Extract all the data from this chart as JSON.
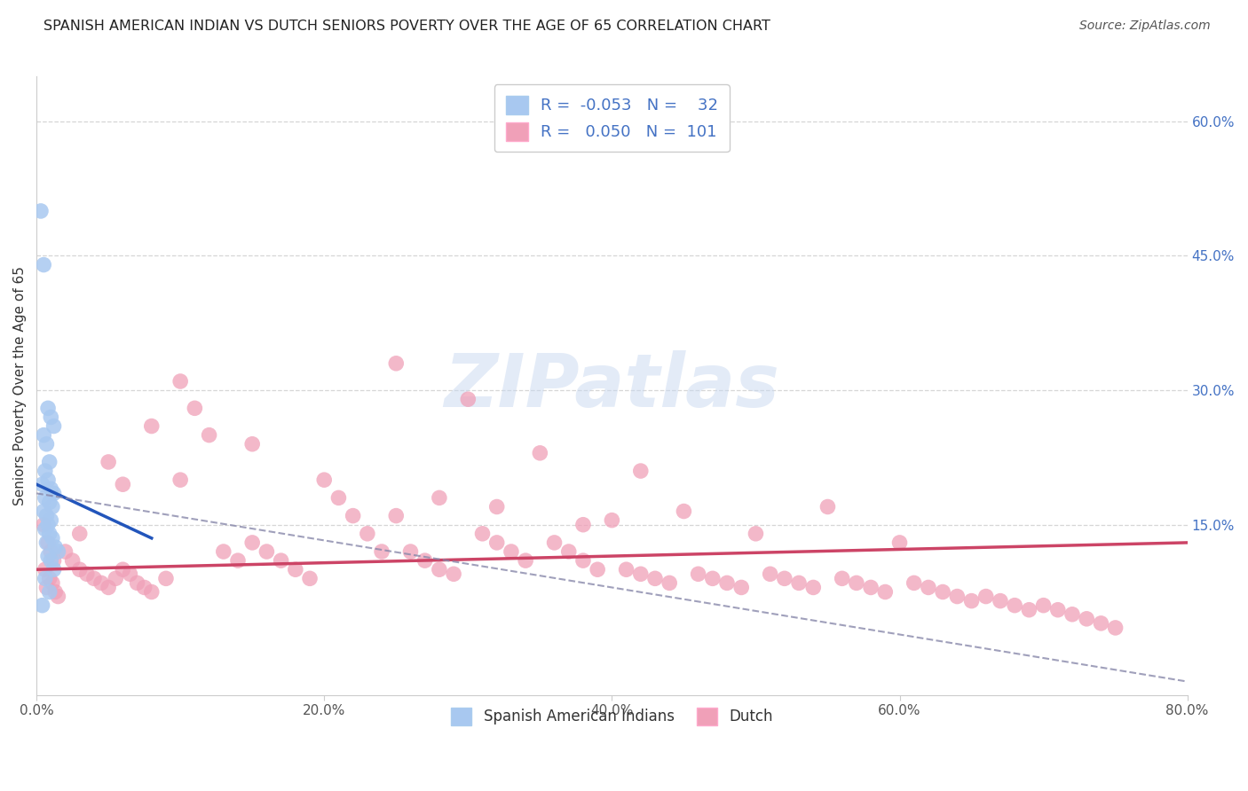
{
  "title": "SPANISH AMERICAN INDIAN VS DUTCH SENIORS POVERTY OVER THE AGE OF 65 CORRELATION CHART",
  "source": "Source: ZipAtlas.com",
  "ylabel": "Seniors Poverty Over the Age of 65",
  "x_min": 0.0,
  "x_max": 0.8,
  "y_min": -0.04,
  "y_max": 0.65,
  "right_yticks": [
    0.15,
    0.3,
    0.45,
    0.6
  ],
  "right_yticklabels": [
    "15.0%",
    "30.0%",
    "45.0%",
    "60.0%"
  ],
  "xticks": [
    0.0,
    0.2,
    0.4,
    0.6,
    0.8
  ],
  "xticklabels": [
    "0.0%",
    "20.0%",
    "40.0%",
    "60.0%",
    "80.0%"
  ],
  "color_blue": "#A8C8F0",
  "color_pink": "#F0A0B8",
  "color_blue_line": "#2255BB",
  "color_pink_line": "#CC4466",
  "color_dashed": "#8888AA",
  "watermark_text": "ZIPatlas",
  "blue_x": [
    0.003,
    0.005,
    0.008,
    0.01,
    0.012,
    0.005,
    0.007,
    0.009,
    0.006,
    0.008,
    0.004,
    0.01,
    0.012,
    0.006,
    0.009,
    0.011,
    0.005,
    0.007,
    0.01,
    0.008,
    0.006,
    0.009,
    0.011,
    0.007,
    0.013,
    0.015,
    0.008,
    0.01,
    0.012,
    0.006,
    0.009,
    0.004
  ],
  "blue_y": [
    0.5,
    0.44,
    0.28,
    0.27,
    0.26,
    0.25,
    0.24,
    0.22,
    0.21,
    0.2,
    0.195,
    0.19,
    0.185,
    0.18,
    0.175,
    0.17,
    0.165,
    0.16,
    0.155,
    0.15,
    0.145,
    0.14,
    0.135,
    0.13,
    0.125,
    0.12,
    0.115,
    0.11,
    0.1,
    0.09,
    0.075,
    0.06
  ],
  "pink_x": [
    0.005,
    0.008,
    0.01,
    0.012,
    0.006,
    0.009,
    0.011,
    0.007,
    0.013,
    0.015,
    0.02,
    0.025,
    0.03,
    0.035,
    0.04,
    0.045,
    0.05,
    0.055,
    0.06,
    0.065,
    0.07,
    0.075,
    0.08,
    0.09,
    0.1,
    0.11,
    0.12,
    0.13,
    0.14,
    0.15,
    0.16,
    0.17,
    0.18,
    0.19,
    0.2,
    0.21,
    0.22,
    0.23,
    0.24,
    0.25,
    0.26,
    0.27,
    0.28,
    0.29,
    0.3,
    0.31,
    0.32,
    0.33,
    0.34,
    0.35,
    0.36,
    0.37,
    0.38,
    0.39,
    0.4,
    0.41,
    0.42,
    0.43,
    0.44,
    0.45,
    0.46,
    0.47,
    0.48,
    0.49,
    0.5,
    0.51,
    0.52,
    0.53,
    0.54,
    0.55,
    0.56,
    0.57,
    0.58,
    0.59,
    0.6,
    0.61,
    0.62,
    0.63,
    0.64,
    0.65,
    0.66,
    0.67,
    0.68,
    0.69,
    0.7,
    0.71,
    0.72,
    0.73,
    0.74,
    0.75,
    0.25,
    0.1,
    0.32,
    0.15,
    0.05,
    0.42,
    0.28,
    0.38,
    0.08,
    0.03,
    0.06
  ],
  "pink_y": [
    0.15,
    0.13,
    0.12,
    0.11,
    0.1,
    0.09,
    0.085,
    0.08,
    0.075,
    0.07,
    0.12,
    0.11,
    0.1,
    0.095,
    0.09,
    0.085,
    0.08,
    0.09,
    0.1,
    0.095,
    0.085,
    0.08,
    0.075,
    0.09,
    0.31,
    0.28,
    0.25,
    0.12,
    0.11,
    0.13,
    0.12,
    0.11,
    0.1,
    0.09,
    0.2,
    0.18,
    0.16,
    0.14,
    0.12,
    0.33,
    0.12,
    0.11,
    0.1,
    0.095,
    0.29,
    0.14,
    0.13,
    0.12,
    0.11,
    0.23,
    0.13,
    0.12,
    0.11,
    0.1,
    0.155,
    0.1,
    0.095,
    0.09,
    0.085,
    0.165,
    0.095,
    0.09,
    0.085,
    0.08,
    0.14,
    0.095,
    0.09,
    0.085,
    0.08,
    0.17,
    0.09,
    0.085,
    0.08,
    0.075,
    0.13,
    0.085,
    0.08,
    0.075,
    0.07,
    0.065,
    0.07,
    0.065,
    0.06,
    0.055,
    0.06,
    0.055,
    0.05,
    0.045,
    0.04,
    0.035,
    0.16,
    0.2,
    0.17,
    0.24,
    0.22,
    0.21,
    0.18,
    0.15,
    0.26,
    0.14,
    0.195
  ],
  "blue_line_x": [
    0.0,
    0.08
  ],
  "blue_line_y": [
    0.195,
    0.135
  ],
  "pink_line_x": [
    0.0,
    0.8
  ],
  "pink_line_y": [
    0.1,
    0.13
  ],
  "dash_line_x": [
    0.0,
    0.8
  ],
  "dash_line_y": [
    0.185,
    -0.025
  ]
}
